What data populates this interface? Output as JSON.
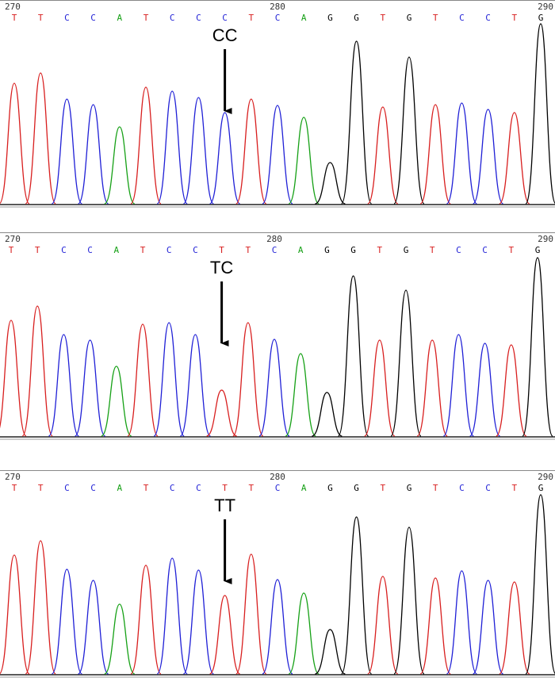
{
  "panels": [
    {
      "positions": [
        270,
        280,
        290
      ],
      "bases": [
        "T",
        "T",
        "C",
        "C",
        "A",
        "T",
        "C",
        "C",
        "C",
        "T",
        "C",
        "A",
        "G",
        "G",
        "T",
        "G",
        "T",
        "C",
        "C",
        "T",
        "G"
      ],
      "peak_heights": [
        152,
        165,
        132,
        125,
        97,
        147,
        142,
        134,
        115,
        132,
        124,
        109,
        52,
        205,
        122,
        185,
        125,
        127,
        119,
        115,
        227
      ],
      "genotype": "CC"
    },
    {
      "positions": [
        270,
        280,
        290
      ],
      "bases": [
        "T",
        "T",
        "C",
        "C",
        "A",
        "T",
        "C",
        "C",
        "T",
        "T",
        "C",
        "A",
        "G",
        "G",
        "T",
        "G",
        "T",
        "C",
        "C",
        "T",
        "G"
      ],
      "peak_heights": [
        146,
        164,
        128,
        121,
        88,
        141,
        143,
        128,
        58,
        143,
        122,
        104,
        55,
        202,
        121,
        184,
        121,
        128,
        117,
        115,
        225
      ],
      "genotype": "TC"
    },
    {
      "positions": [
        270,
        280,
        290
      ],
      "bases": [
        "T",
        "T",
        "C",
        "C",
        "A",
        "T",
        "C",
        "C",
        "T",
        "T",
        "C",
        "A",
        "G",
        "G",
        "T",
        "G",
        "T",
        "C",
        "C",
        "T",
        "G"
      ],
      "peak_heights": [
        150,
        168,
        132,
        118,
        88,
        137,
        146,
        131,
        99,
        151,
        119,
        102,
        56,
        198,
        123,
        185,
        121,
        130,
        118,
        116,
        226
      ],
      "genotype": "TT"
    }
  ]
}
